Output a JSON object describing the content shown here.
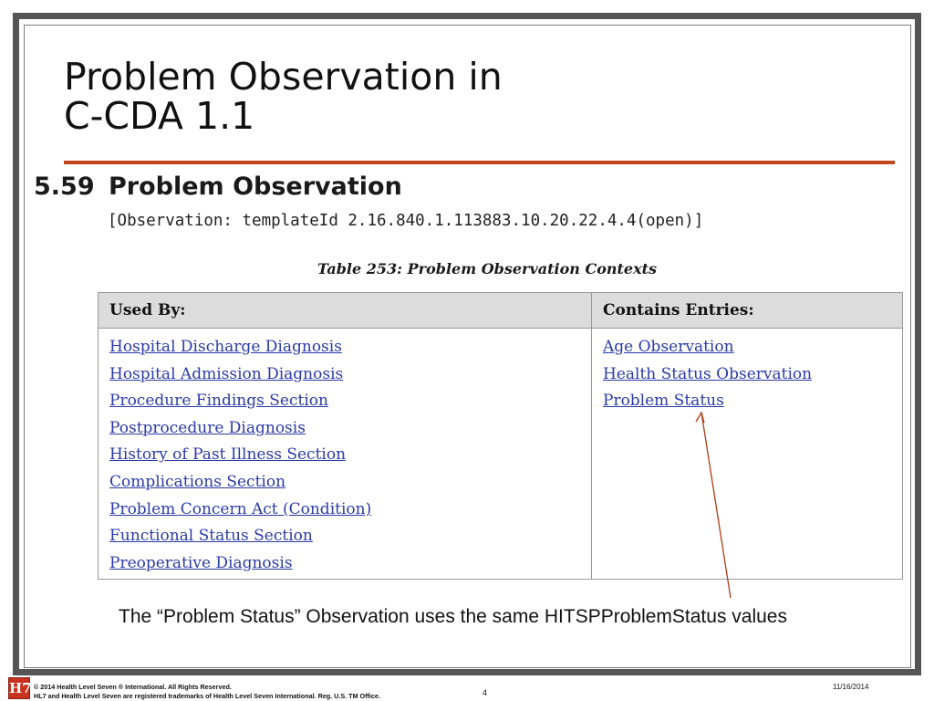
{
  "slide": {
    "title_line1": "Problem Observation in",
    "title_line2": "C-CDA 1.1",
    "annotation": "The “Problem Status” Observation uses the same HITSPProblemStatus values",
    "accent_color": "#c0441c"
  },
  "spec": {
    "section_number": "5.59",
    "section_title": "Problem Observation",
    "template_line": "[Observation: templateId 2.16.840.1.113883.10.20.22.4.4(open)]",
    "table_caption": "Table 253: Problem Observation Contexts",
    "table": {
      "headers": [
        "Used By:",
        "Contains Entries:"
      ],
      "used_by": [
        "Hospital Discharge Diagnosis",
        "Hospital Admission Diagnosis",
        "Procedure Findings Section",
        "Postprocedure Diagnosis",
        "History of Past Illness Section",
        "Complications Section",
        "Problem Concern Act (Condition)",
        "Functional Status Section",
        "Preoperative Diagnosis"
      ],
      "contains_entries": [
        "Age Observation",
        "Health Status Observation",
        "Problem Status"
      ]
    },
    "link_color": "#2b3aa8"
  },
  "footer": {
    "logo_text": "H7",
    "line1": "© 2014 Health Level Seven ® International. All Rights Reserved.",
    "line2": "HL7 and Health Level Seven are registered trademarks of Health Level Seven International. Reg. U.S. TM Office.",
    "page_number": "4",
    "date": "11/16/2014"
  }
}
